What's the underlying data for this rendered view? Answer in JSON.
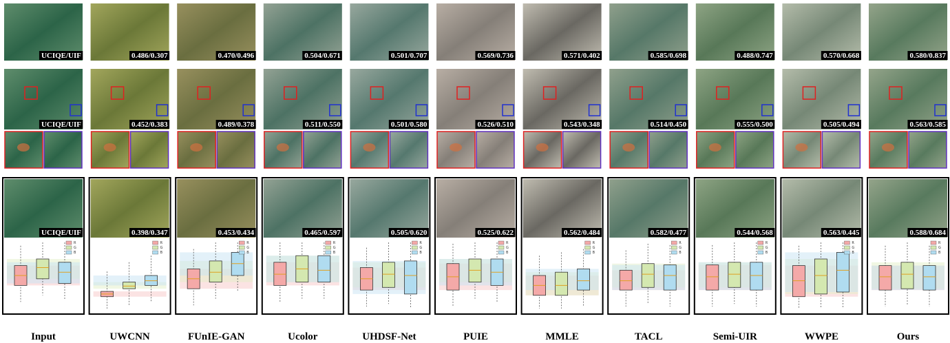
{
  "legend": [
    "R",
    "G",
    "B"
  ],
  "columns": [
    {
      "name": "Input",
      "row1": "UCIQE/UIF",
      "row2": "UCIQE/UIF",
      "row3": "UCIQE/UIF"
    },
    {
      "name": "UWCNN",
      "row1": "0.486/0.307",
      "row2": "0.452/0.383",
      "row3": "0.398/0.347"
    },
    {
      "name": "FUnIE-GAN",
      "row1": "0.470/0.496",
      "row2": "0.489/0.378",
      "row3": "0.453/0.434"
    },
    {
      "name": "Ucolor",
      "row1": "0.504/0.671",
      "row2": "0.511/0.550",
      "row3": "0.465/0.597"
    },
    {
      "name": "UHDSF-Net",
      "row1": "0.501/0.707",
      "row2": "0.501/0.580",
      "row3": "0.505/0.620"
    },
    {
      "name": "PUIE",
      "row1": "0.569/0.736",
      "row2": "0.526/0.510",
      "row3": "0.525/0.622"
    },
    {
      "name": "MMLE",
      "row1": "0.571/0.402",
      "row2": "0.543/0.348",
      "row3": "0.562/0.484"
    },
    {
      "name": "TACL",
      "row1": "0.585/0.698",
      "row2": "0.514/0.450",
      "row3": "0.582/0.477"
    },
    {
      "name": "Semi-UIR",
      "row1": "0.488/0.747",
      "row2": "0.555/0.500",
      "row3": "0.544/0.568"
    },
    {
      "name": "WWPE",
      "row1": "0.570/0.668",
      "row2": "0.505/0.494",
      "row3": "0.563/0.445"
    },
    {
      "name": "Ours",
      "row1": "0.580/0.837",
      "row2": "0.563/0.585",
      "row3": "0.588/0.684"
    }
  ]
}
